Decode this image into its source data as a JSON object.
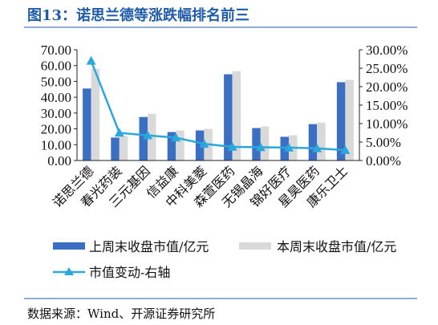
{
  "title": "图13：诺思兰德等涨跌幅排名前三",
  "source": "数据来源：Wind、开源证券研究所",
  "colors": {
    "title": "#1f5ba8",
    "series_last": "#3a6fc4",
    "series_this": "#d9d9d9",
    "series_change": "#2aa8dd",
    "axis": "#222222"
  },
  "chart_data": {
    "type": "bar",
    "categories": [
      "诺思兰德",
      "春光药装",
      "三元基因",
      "信益康",
      "中科美菱",
      "森萱医药",
      "无锡晶海",
      "锦好医疗",
      "星昊医药",
      "康乐卫士"
    ],
    "series": [
      {
        "name": "上周末收盘市值/亿元",
        "type": "bar",
        "axis": "left",
        "color": "#3a6fc4",
        "values": [
          45.5,
          14.5,
          27.5,
          18.0,
          19.0,
          54.5,
          20.5,
          15.0,
          23.0,
          49.5
        ]
      },
      {
        "name": "本周末收盘市值/亿元",
        "type": "bar",
        "axis": "left",
        "color": "#d9d9d9",
        "values": [
          58.0,
          15.5,
          29.5,
          19.0,
          20.0,
          56.5,
          21.5,
          16.0,
          24.0,
          51.0
        ]
      },
      {
        "name": "市值变动-右轴",
        "type": "line",
        "axis": "right",
        "color": "#2aa8dd",
        "marker": "triangle",
        "values": [
          27.0,
          7.5,
          6.8,
          6.2,
          4.5,
          3.7,
          3.6,
          3.5,
          3.3,
          2.8
        ]
      }
    ],
    "left_axis": {
      "min": 0,
      "max": 70,
      "step": 10,
      "tick_labels": [
        "0.00",
        "10.00",
        "20.00",
        "30.00",
        "40.00",
        "50.00",
        "60.00",
        "70.00"
      ]
    },
    "right_axis": {
      "min": 0,
      "max": 30,
      "step": 5,
      "tick_labels": [
        "0.00%",
        "5.00%",
        "10.00%",
        "15.00%",
        "20.00%",
        "25.00%",
        "30.00%"
      ]
    },
    "grid": false,
    "legend_position": "bottom"
  }
}
